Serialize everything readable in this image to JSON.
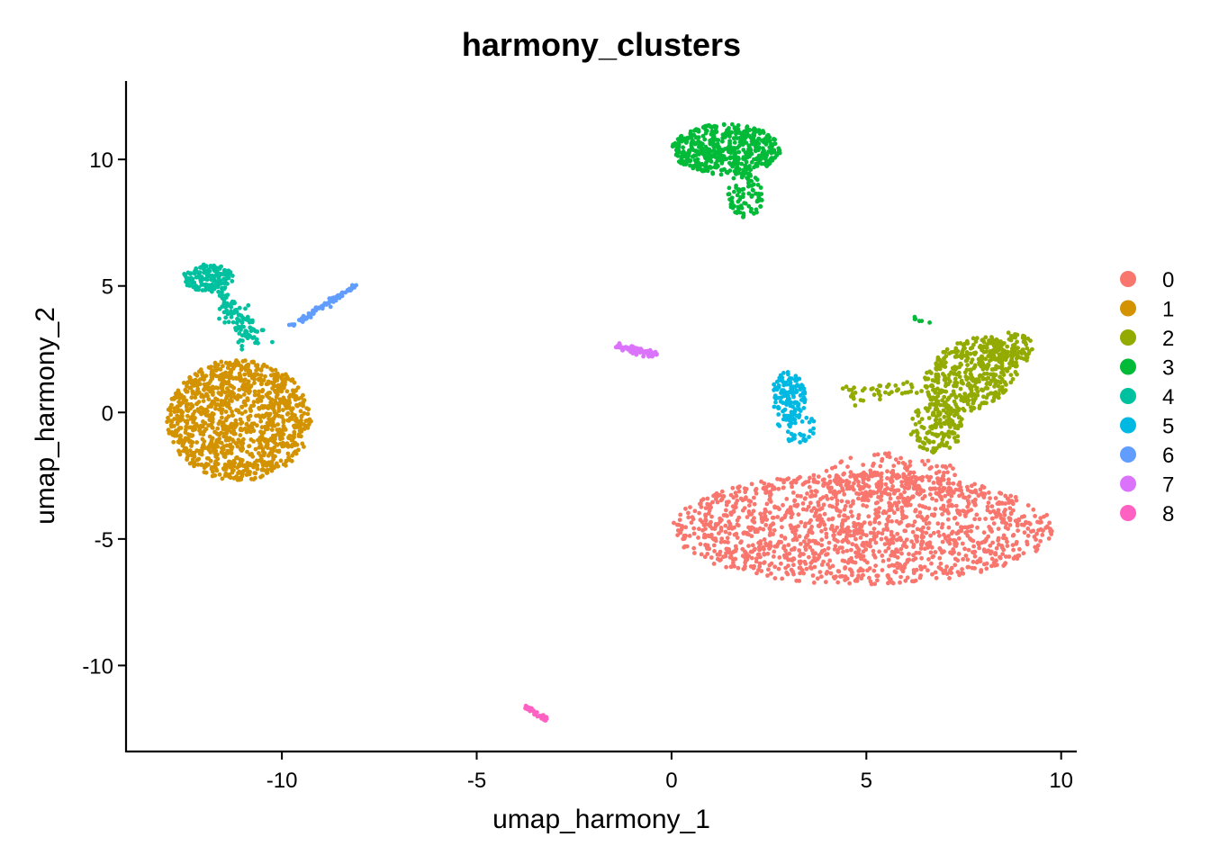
{
  "chart_data": {
    "type": "scatter",
    "title": "harmony_clusters",
    "xlabel": "umap_harmony_1",
    "ylabel": "umap_harmony_2",
    "xlim": [
      -14.0,
      10.4
    ],
    "ylim": [
      -13.4,
      13.1
    ],
    "x_ticks": [
      -10,
      -5,
      0,
      5,
      10
    ],
    "y_ticks": [
      10,
      5,
      0,
      -5,
      -10
    ],
    "x_tick_labels": [
      "-10",
      "-5",
      "0",
      "5",
      "10"
    ],
    "y_tick_labels": [
      "10",
      "5",
      "0",
      "-5",
      "-10"
    ],
    "grid": false,
    "legend_position": "right",
    "series": [
      {
        "name": "0",
        "color": "#F8766D",
        "regions": [
          {
            "shape": "ellipse",
            "cx": 4.9,
            "cy": -4.6,
            "rx": 4.9,
            "ry": 2.2,
            "n": 1500
          },
          {
            "shape": "ellipse",
            "cx": 5.6,
            "cy": -2.6,
            "rx": 1.8,
            "ry": 1.0,
            "n": 160
          }
        ]
      },
      {
        "name": "1",
        "color": "#D39200",
        "regions": [
          {
            "shape": "ellipse",
            "cx": -11.1,
            "cy": -0.3,
            "rx": 1.85,
            "ry": 2.4,
            "n": 1150
          }
        ]
      },
      {
        "name": "2",
        "color": "#93AA00",
        "regions": [
          {
            "shape": "ellipse",
            "cx": 7.7,
            "cy": 1.5,
            "rx": 1.1,
            "ry": 1.6,
            "n": 420,
            "rot": -28
          },
          {
            "shape": "ellipse",
            "cx": 6.8,
            "cy": -0.6,
            "rx": 0.7,
            "ry": 1.0,
            "n": 140
          },
          {
            "shape": "ellipse",
            "cx": 8.7,
            "cy": 2.5,
            "rx": 0.6,
            "ry": 0.7,
            "n": 90
          },
          {
            "shape": "line",
            "x0": 4.4,
            "y0": 0.6,
            "x1": 6.4,
            "y1": 1.0,
            "spread": 0.18,
            "n": 45
          }
        ]
      },
      {
        "name": "3",
        "color": "#00BA38",
        "regions": [
          {
            "shape": "ellipse",
            "cx": 1.4,
            "cy": 10.4,
            "rx": 1.4,
            "ry": 1.0,
            "n": 500
          },
          {
            "shape": "ellipse",
            "cx": 1.9,
            "cy": 8.6,
            "rx": 0.45,
            "ry": 0.9,
            "n": 90
          },
          {
            "shape": "line",
            "x0": 6.1,
            "y0": 3.8,
            "x1": 6.6,
            "y1": 3.5,
            "spread": 0.05,
            "n": 6
          }
        ]
      },
      {
        "name": "4",
        "color": "#00C19F",
        "regions": [
          {
            "shape": "ellipse",
            "cx": -11.9,
            "cy": 5.3,
            "rx": 0.65,
            "ry": 0.55,
            "n": 150
          },
          {
            "shape": "line",
            "x0": -11.6,
            "y0": 4.8,
            "x1": -10.7,
            "y1": 2.8,
            "spread": 0.2,
            "n": 110
          }
        ]
      },
      {
        "name": "5",
        "color": "#00B9E3",
        "regions": [
          {
            "shape": "ellipse",
            "cx": 3.0,
            "cy": 0.6,
            "rx": 0.45,
            "ry": 1.0,
            "n": 130
          },
          {
            "shape": "ellipse",
            "cx": 3.2,
            "cy": -0.6,
            "rx": 0.5,
            "ry": 0.6,
            "n": 40
          }
        ]
      },
      {
        "name": "6",
        "color": "#619CFF",
        "regions": [
          {
            "shape": "line",
            "x0": -9.8,
            "y0": 3.4,
            "x1": -8.1,
            "y1": 5.0,
            "spread": 0.04,
            "n": 80
          }
        ]
      },
      {
        "name": "7",
        "color": "#DB72FB",
        "regions": [
          {
            "shape": "line",
            "x0": -1.6,
            "y0": 2.65,
            "x1": -0.4,
            "y1": 2.3,
            "spread": 0.07,
            "n": 70
          }
        ]
      },
      {
        "name": "8",
        "color": "#FF61C3",
        "regions": [
          {
            "shape": "line",
            "x0": -3.8,
            "y0": -11.6,
            "x1": -3.2,
            "y1": -12.1,
            "spread": 0.04,
            "n": 30
          }
        ]
      }
    ]
  }
}
